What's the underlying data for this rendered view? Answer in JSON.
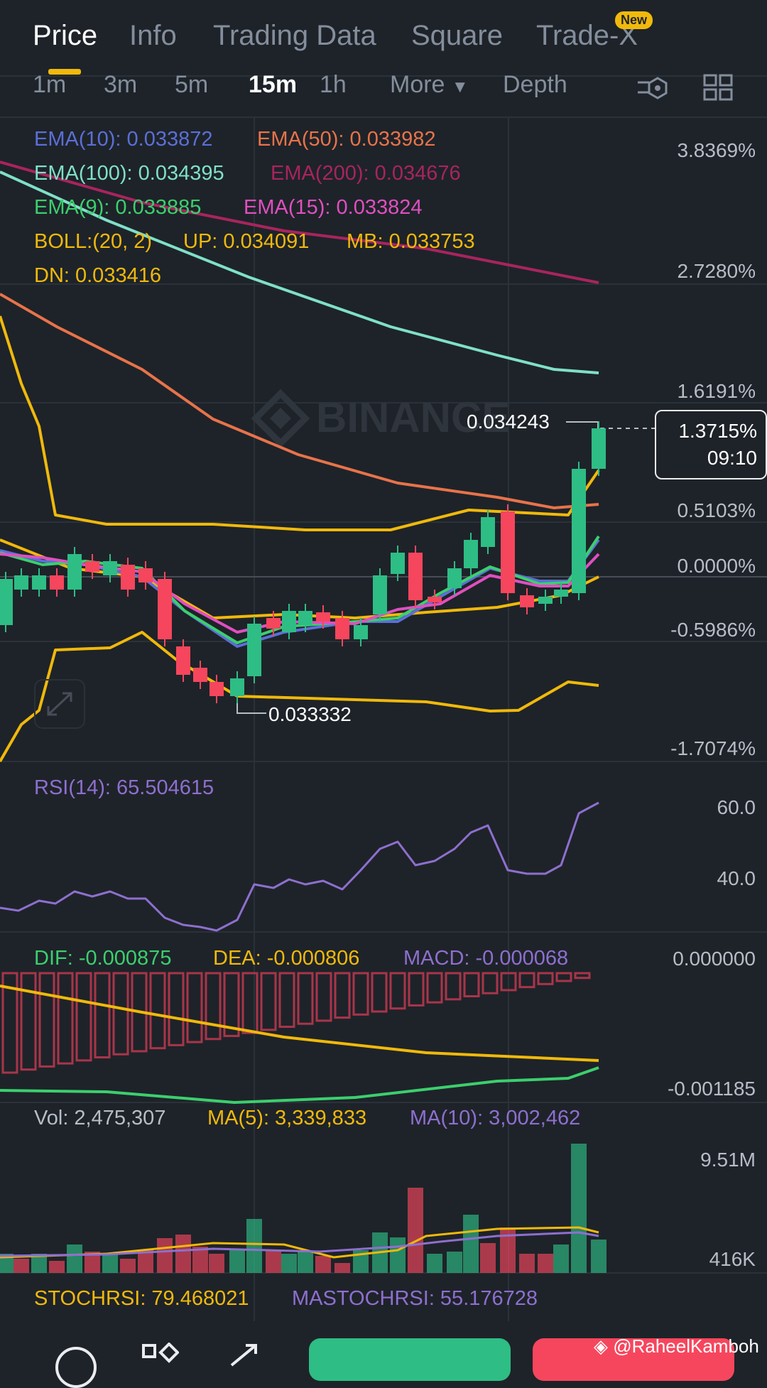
{
  "tabs": [
    {
      "label": "Price",
      "active": true
    },
    {
      "label": "Info"
    },
    {
      "label": "Trading Data"
    },
    {
      "label": "Square"
    },
    {
      "label": "Trade-X"
    }
  ],
  "new_badge": "New",
  "timeframes": [
    "1m",
    "3m",
    "5m",
    "15m",
    "1h",
    "More",
    "Depth"
  ],
  "active_timeframe": "15m",
  "indicators": {
    "ema10": "EMA(10): 0.033872",
    "ema50": "EMA(50): 0.033982",
    "ema100": "EMA(100): 0.034395",
    "ema200": "EMA(200): 0.034676",
    "ema9": "EMA(9): 0.033885",
    "ema15": "EMA(15): 0.033824",
    "boll": "BOLL:(20, 2)",
    "boll_up": "UP: 0.034091",
    "boll_mb": "MB: 0.033753",
    "boll_dn": "DN: 0.033416"
  },
  "price_axis": [
    "3.8369%",
    "2.7280%",
    "1.6191%",
    "0.5103%",
    "0.0000%",
    "-0.5986%",
    "-1.7074%"
  ],
  "high_label": "0.034243",
  "low_label": "0.033332",
  "current": {
    "percent": "1.3715%",
    "countdown": "09:10"
  },
  "watermark": "BINANCE",
  "rsi": {
    "label": "RSI(14): 65.504615",
    "axis": [
      "60.0",
      "40.0"
    ]
  },
  "macd": {
    "dif": "DIF: -0.000875",
    "dea": "DEA: -0.000806",
    "macd": "MACD: -0.000068",
    "axis": [
      "0.000000",
      "-0.001185"
    ]
  },
  "volume": {
    "vol": "Vol: 2,475,307",
    "ma5": "MA(5): 3,339,833",
    "ma10": "MA(10): 3,002,462",
    "axis": [
      "9.51M",
      "416K"
    ]
  },
  "stochrsi": {
    "label": "STOCHRSI: 79.468021",
    "ma": "MASTOCHRSI: 55.176728"
  },
  "credit": "@RaheelKamboh",
  "colors": {
    "up": "#2ebd85",
    "down": "#f6465d",
    "ema10": "#5b6fd6",
    "ema50": "#e8734a",
    "ema100": "#7fe0c8",
    "ema200": "#a8245e",
    "ema9": "#3ccf6e",
    "ema15": "#e04fc0",
    "boll": "#f0b90b",
    "rsi": "#8e6fcf"
  }
}
